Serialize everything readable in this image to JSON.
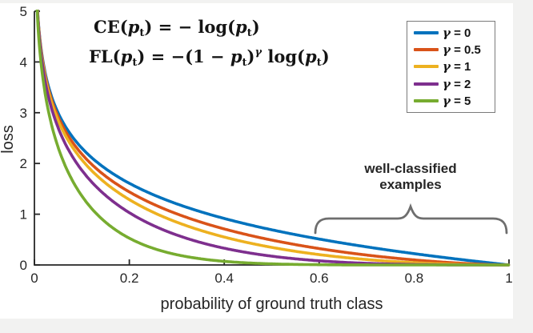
{
  "figure": {
    "equations": {
      "ce": {
        "t1": "CE(",
        "v1": "p",
        "s1": "t",
        "t2": ") = − log(",
        "v2": "p",
        "s2": "t",
        "t3": ")"
      },
      "fl": {
        "t1": "FL(",
        "v1": "p",
        "s1": "t",
        "t2": ") = −(1 − ",
        "v2": "p",
        "s2": "t",
        "t3": ")",
        "sup": "γ",
        "t4": " log(",
        "v3": "p",
        "s3": "t",
        "t5": ")"
      }
    },
    "annotation": {
      "line1": "well-classified",
      "line2": "examples"
    }
  },
  "chart_data": {
    "type": "line",
    "title": "",
    "xlabel": "probability of ground truth class",
    "ylabel": "loss",
    "xlim": [
      0,
      1
    ],
    "ylim": [
      0,
      5
    ],
    "grid": false,
    "legend_position": "top-right",
    "xticks": [
      0,
      0.2,
      0.4,
      0.6,
      0.8,
      1
    ],
    "xtick_labels": [
      "0",
      "0.2",
      "0.4",
      "0.6",
      "0.8",
      "1"
    ],
    "yticks": [
      0,
      1,
      2,
      3,
      4,
      5
    ],
    "ytick_labels": [
      "0",
      "1",
      "2",
      "3",
      "4",
      "5"
    ],
    "formula": "loss(p, gamma) = -(1-p)^gamma * ln(p), clipped at loss = 5",
    "sample_x": [
      0.01,
      0.05,
      0.1,
      0.2,
      0.4,
      0.6,
      0.8,
      1.0
    ],
    "series": [
      {
        "label": "γ = 0",
        "sym": "γ",
        "eq": "= 0",
        "gamma": 0,
        "color": "#0072BD",
        "sample_y": [
          4.61,
          3.0,
          2.3,
          1.61,
          0.92,
          0.51,
          0.22,
          0.0
        ]
      },
      {
        "label": "γ = 0.5",
        "sym": "γ",
        "eq": "= 0.5",
        "gamma": 0.5,
        "color": "#D95319",
        "sample_y": [
          4.58,
          2.92,
          2.18,
          1.44,
          0.71,
          0.32,
          0.1,
          0.0
        ]
      },
      {
        "label": "γ = 1",
        "sym": "γ",
        "eq": "= 1",
        "gamma": 1,
        "color": "#EDB120",
        "sample_y": [
          4.56,
          2.85,
          2.07,
          1.29,
          0.55,
          0.2,
          0.04,
          0.0
        ]
      },
      {
        "label": "γ = 2",
        "sym": "γ",
        "eq": "= 2",
        "gamma": 2,
        "color": "#7E2F8E",
        "sample_y": [
          4.51,
          2.7,
          1.87,
          1.03,
          0.33,
          0.08,
          0.01,
          0.0
        ]
      },
      {
        "label": "γ = 5",
        "sym": "γ",
        "eq": "= 5",
        "gamma": 5,
        "color": "#77AC30",
        "sample_y": [
          4.38,
          2.32,
          1.36,
          0.53,
          0.07,
          0.01,
          0.0,
          0.0
        ]
      }
    ],
    "annotation_text": "well-classified examples",
    "annotation_x_range": [
      0.59,
      0.99
    ]
  }
}
